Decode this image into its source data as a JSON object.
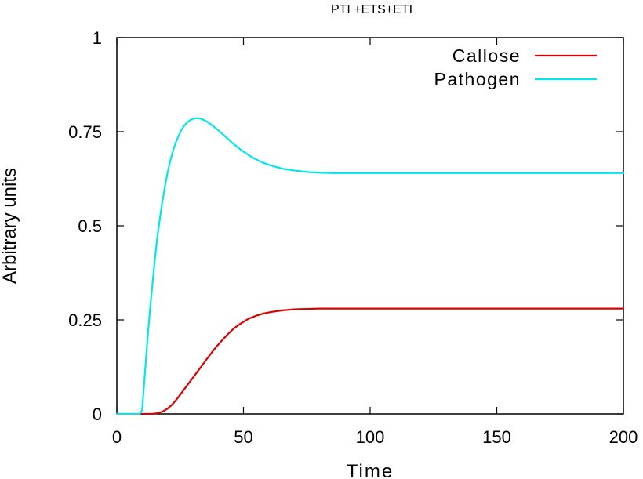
{
  "chart_data": {
    "type": "line",
    "title": "PTI +ETS+ETI",
    "xlabel": "Time",
    "ylabel": "Arbitrary units",
    "xlim": [
      0,
      200
    ],
    "ylim": [
      0,
      1
    ],
    "xticks": [
      0,
      50,
      100,
      150,
      200
    ],
    "yticks": [
      0,
      0.25,
      0.5,
      0.75,
      1
    ],
    "xtick_labels": [
      "0",
      "50",
      "100",
      "150",
      "200"
    ],
    "ytick_labels": [
      "0",
      "0.25",
      "0.5",
      "0.75",
      "1"
    ],
    "grid": false,
    "legend_position": "top-right",
    "series": [
      {
        "name": "Callose",
        "color": "#dd0000",
        "x": [
          0,
          10,
          14,
          16,
          18,
          20,
          22,
          24,
          26,
          28,
          30,
          32,
          34,
          36,
          38,
          40,
          42,
          44,
          46,
          48,
          50,
          52,
          55,
          58,
          61,
          65,
          70,
          75,
          80,
          85,
          90,
          100,
          125,
          150,
          175,
          200
        ],
        "y": [
          0,
          0,
          0,
          0.002,
          0.006,
          0.014,
          0.026,
          0.042,
          0.06,
          0.078,
          0.096,
          0.114,
          0.132,
          0.15,
          0.168,
          0.184,
          0.199,
          0.213,
          0.226,
          0.236,
          0.245,
          0.253,
          0.261,
          0.267,
          0.271,
          0.275,
          0.278,
          0.279,
          0.28,
          0.28,
          0.28,
          0.28,
          0.28,
          0.28,
          0.28,
          0.28
        ]
      },
      {
        "name": "Pathogen",
        "color": "#00e5ee",
        "x": [
          0,
          9,
          10,
          11,
          12,
          13,
          14,
          15,
          16,
          17,
          18,
          19,
          20,
          21,
          22,
          23,
          24,
          25,
          26,
          27,
          28,
          29,
          30,
          31,
          32,
          33,
          34,
          35,
          36,
          38,
          40,
          42,
          44,
          46,
          48,
          50,
          52,
          54,
          56,
          58,
          60,
          63,
          66,
          70,
          75,
          80,
          85,
          90,
          100,
          125,
          150,
          175,
          200
        ],
        "y": [
          0,
          0,
          0.01,
          0.1,
          0.19,
          0.27,
          0.34,
          0.41,
          0.47,
          0.52,
          0.565,
          0.605,
          0.64,
          0.67,
          0.695,
          0.716,
          0.733,
          0.748,
          0.76,
          0.769,
          0.776,
          0.781,
          0.784,
          0.786,
          0.786,
          0.785,
          0.782,
          0.779,
          0.775,
          0.765,
          0.754,
          0.742,
          0.73,
          0.718,
          0.707,
          0.697,
          0.688,
          0.68,
          0.673,
          0.667,
          0.662,
          0.656,
          0.651,
          0.647,
          0.643,
          0.641,
          0.64,
          0.64,
          0.64,
          0.64,
          0.64,
          0.64,
          0.64
        ]
      }
    ]
  }
}
